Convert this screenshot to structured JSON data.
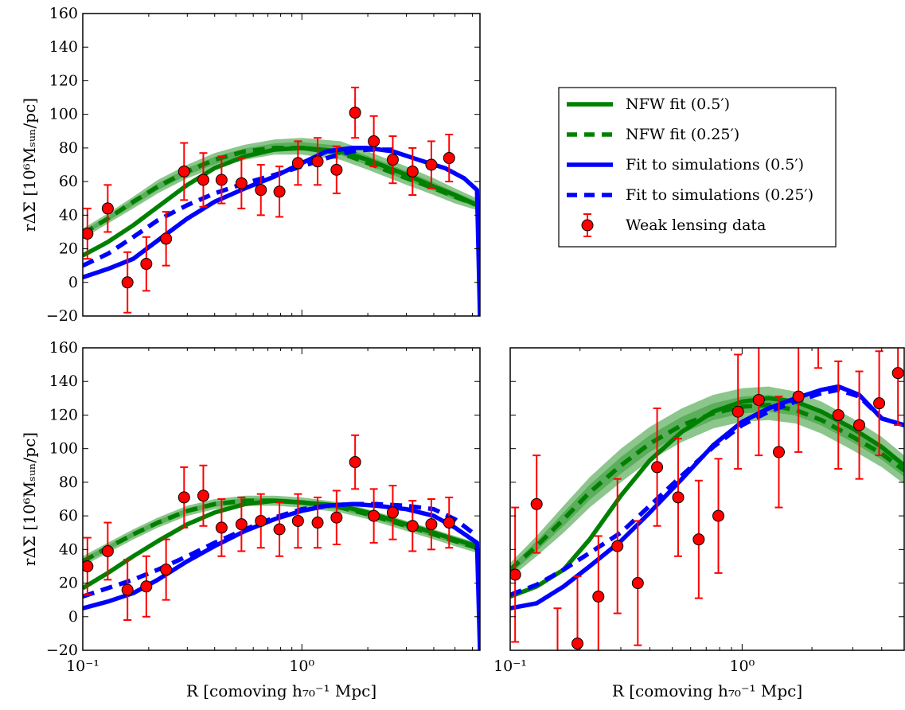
{
  "chart_data": [
    {
      "type": "line",
      "panel": "top-left",
      "xscale": "log",
      "xlim": [
        0.1,
        6.5
      ],
      "ylim": [
        -20,
        160
      ],
      "yticks": [
        "−20",
        "0",
        "20",
        "40",
        "60",
        "80",
        "100",
        "120",
        "140",
        "160"
      ],
      "xticks": [],
      "ylabel": "rΔΣ [10⁶Mₛᵤₙ/pc]",
      "xlabel": "",
      "legend_placement": "right",
      "series": [
        {
          "name": "NFW fit (0.5′)",
          "style": "solid",
          "color": "#008000",
          "x": [
            0.1,
            0.13,
            0.17,
            0.22,
            0.3,
            0.4,
            0.55,
            0.75,
            1.0,
            1.5,
            2.0,
            3.0,
            4.0,
            5.0,
            6.3
          ],
          "y": [
            16,
            24,
            34,
            45,
            58,
            68,
            75,
            79,
            80,
            78,
            73,
            64,
            57,
            52,
            46
          ]
        },
        {
          "name": "NFW fit (0.25′)",
          "style": "dashed",
          "color": "#008000",
          "x": [
            0.1,
            0.13,
            0.17,
            0.22,
            0.3,
            0.4,
            0.55,
            0.75,
            1.0,
            1.5,
            2.0,
            3.0,
            4.0,
            5.0,
            6.3
          ],
          "y": [
            29,
            38,
            48,
            57,
            66,
            73,
            78,
            80,
            80,
            77,
            71,
            62,
            56,
            51,
            46
          ]
        },
        {
          "name": "Fit to simulations (0.5′)",
          "style": "solid",
          "color": "#0000ff",
          "x": [
            0.1,
            0.13,
            0.17,
            0.22,
            0.3,
            0.4,
            0.55,
            0.75,
            1.0,
            1.3,
            1.7,
            2.0,
            2.6,
            3.4,
            4.5,
            5.5,
            6.3,
            6.5
          ],
          "y": [
            3,
            8,
            14,
            25,
            38,
            48,
            56,
            63,
            71,
            78,
            80,
            80,
            78,
            73,
            68,
            62,
            55,
            -20
          ]
        },
        {
          "name": "Fit to simulations (0.25′)",
          "style": "dashed",
          "color": "#0000ff",
          "x": [
            0.1,
            0.13,
            0.17,
            0.22,
            0.3,
            0.4,
            0.55,
            0.75,
            1.0,
            1.3,
            1.7,
            2.0,
            2.6
          ],
          "y": [
            10,
            17,
            27,
            37,
            46,
            53,
            59,
            64,
            69,
            74,
            78,
            79,
            79
          ]
        }
      ],
      "band": {
        "color": "#008000",
        "x": [
          0.1,
          0.13,
          0.17,
          0.22,
          0.3,
          0.4,
          0.55,
          0.75,
          1.0,
          1.5,
          2.0,
          3.0,
          4.0,
          5.0,
          6.3
        ],
        "lower": [
          26,
          35,
          44,
          53,
          62,
          68,
          73,
          76,
          76,
          73,
          67,
          58,
          52,
          47,
          43
        ],
        "upper": [
          32,
          41,
          51,
          61,
          70,
          77,
          82,
          85,
          86,
          84,
          78,
          69,
          62,
          56,
          50
        ]
      },
      "points": {
        "name": "Weak lensing data",
        "color": "#ff0000",
        "x": [
          0.105,
          0.13,
          0.16,
          0.195,
          0.24,
          0.29,
          0.355,
          0.43,
          0.53,
          0.65,
          0.79,
          0.96,
          1.18,
          1.44,
          1.75,
          2.13,
          2.6,
          3.2,
          3.9,
          4.7
        ],
        "y": [
          29,
          44,
          0,
          11,
          26,
          66,
          61,
          61,
          59,
          55,
          54,
          71,
          72,
          67,
          101,
          84,
          73,
          66,
          70,
          74
        ],
        "yerr": [
          15,
          14,
          18,
          16,
          16,
          17,
          16,
          14,
          15,
          15,
          15,
          13,
          14,
          14,
          15,
          15,
          14,
          14,
          14,
          14
        ]
      }
    },
    {
      "type": "line",
      "panel": "bottom-left",
      "xscale": "log",
      "xlim": [
        0.1,
        6.5
      ],
      "ylim": [
        -20,
        160
      ],
      "yticks": [
        "−20",
        "0",
        "20",
        "40",
        "60",
        "80",
        "100",
        "120",
        "140",
        "160"
      ],
      "xticks": [
        "10⁻¹",
        "10⁰"
      ],
      "ylabel": "rΔΣ [10⁶Mₛᵤₙ/pc]",
      "xlabel": "R [comoving h₇₀⁻¹ Mpc]",
      "series": [
        {
          "name": "NFW fit (0.5′)",
          "style": "solid",
          "color": "#008000",
          "x": [
            0.1,
            0.13,
            0.17,
            0.22,
            0.3,
            0.4,
            0.55,
            0.75,
            1.0,
            1.5,
            2.0,
            3.0,
            4.0,
            5.0,
            6.3
          ],
          "y": [
            17,
            26,
            36,
            45,
            55,
            62,
            67,
            69,
            68,
            66,
            62,
            55,
            50,
            46,
            42
          ]
        },
        {
          "name": "NFW fit (0.25′)",
          "style": "dashed",
          "color": "#008000",
          "x": [
            0.1,
            0.13,
            0.17,
            0.22,
            0.3,
            0.4,
            0.55,
            0.75,
            1.0,
            1.5,
            2.0,
            3.0,
            4.0,
            5.0,
            6.3
          ],
          "y": [
            33,
            41,
            49,
            56,
            63,
            67,
            69,
            69,
            68,
            65,
            61,
            54,
            49,
            45,
            41
          ]
        },
        {
          "name": "Fit to simulations (0.5′)",
          "style": "solid",
          "color": "#0000ff",
          "x": [
            0.1,
            0.13,
            0.17,
            0.22,
            0.3,
            0.4,
            0.55,
            0.75,
            1.0,
            1.3,
            1.7,
            2.2,
            3.0,
            4.0,
            5.0,
            6.3,
            6.5
          ],
          "y": [
            5,
            9,
            14,
            22,
            33,
            42,
            51,
            58,
            63,
            66,
            67,
            66,
            64,
            60,
            53,
            44,
            -20
          ]
        },
        {
          "name": "Fit to simulations (0.25′)",
          "style": "dashed",
          "color": "#0000ff",
          "x": [
            0.1,
            0.13,
            0.17,
            0.22,
            0.3,
            0.4,
            0.55,
            0.75,
            1.0,
            1.3,
            1.7,
            2.2,
            3.0,
            4.0,
            5.0,
            6.3
          ],
          "y": [
            12,
            17,
            22,
            28,
            36,
            44,
            52,
            59,
            64,
            66,
            67,
            67,
            66,
            64,
            58,
            48
          ]
        }
      ],
      "band": {
        "color": "#008000",
        "x": [
          0.1,
          0.13,
          0.17,
          0.22,
          0.3,
          0.4,
          0.55,
          0.75,
          1.0,
          1.5,
          2.0,
          3.0,
          4.0,
          5.0,
          6.3
        ],
        "lower": [
          30,
          38,
          46,
          53,
          60,
          64,
          66,
          66,
          65,
          62,
          58,
          51,
          46,
          42,
          38
        ],
        "upper": [
          36,
          44,
          52,
          59,
          66,
          70,
          72,
          72,
          71,
          68,
          64,
          57,
          52,
          48,
          44
        ]
      },
      "points": {
        "name": "Weak lensing data",
        "color": "#ff0000",
        "x": [
          0.105,
          0.13,
          0.16,
          0.195,
          0.24,
          0.29,
          0.355,
          0.43,
          0.53,
          0.65,
          0.79,
          0.96,
          1.18,
          1.44,
          1.75,
          2.13,
          2.6,
          3.2,
          3.9,
          4.7
        ],
        "y": [
          30,
          39,
          16,
          18,
          28,
          71,
          72,
          53,
          55,
          57,
          52,
          57,
          56,
          59,
          92,
          60,
          62,
          54,
          55,
          56
        ],
        "yerr": [
          17,
          17,
          18,
          18,
          18,
          18,
          18,
          17,
          16,
          16,
          16,
          16,
          15,
          16,
          16,
          16,
          16,
          15,
          15,
          15
        ]
      }
    },
    {
      "type": "line",
      "panel": "bottom-right",
      "xscale": "log",
      "xlim": [
        0.1,
        5.0
      ],
      "ylim": [
        -20,
        160
      ],
      "yticks": [],
      "xticks": [
        "10⁻¹",
        "10⁰"
      ],
      "ylabel": "",
      "xlabel": "R [comoving h₇₀⁻¹ Mpc]",
      "series": [
        {
          "name": "NFW fit (0.5′)",
          "style": "solid",
          "color": "#008000",
          "x": [
            0.1,
            0.13,
            0.17,
            0.22,
            0.3,
            0.4,
            0.55,
            0.75,
            1.0,
            1.3,
            1.7,
            2.2,
            3.0,
            4.0,
            5.0
          ],
          "y": [
            12,
            18,
            28,
            46,
            72,
            93,
            110,
            122,
            128,
            130,
            128,
            122,
            112,
            101,
            90
          ]
        },
        {
          "name": "NFW fit (0.25′)",
          "style": "dashed",
          "color": "#008000",
          "x": [
            0.1,
            0.13,
            0.17,
            0.22,
            0.3,
            0.4,
            0.55,
            0.75,
            1.0,
            1.3,
            1.7,
            2.2,
            3.0,
            4.0,
            5.0
          ],
          "y": [
            28,
            42,
            58,
            74,
            90,
            103,
            114,
            121,
            125,
            126,
            123,
            117,
            107,
            97,
            87
          ]
        },
        {
          "name": "Fit to simulations (0.5′)",
          "style": "solid",
          "color": "#0000ff",
          "x": [
            0.1,
            0.13,
            0.17,
            0.22,
            0.3,
            0.4,
            0.55,
            0.75,
            1.0,
            1.3,
            1.7,
            2.2,
            2.6,
            3.2,
            4.0,
            5.0
          ],
          "y": [
            5,
            8,
            18,
            30,
            45,
            62,
            82,
            102,
            116,
            124,
            130,
            135,
            137,
            132,
            118,
            114
          ]
        },
        {
          "name": "Fit to simulations (0.25′)",
          "style": "dashed",
          "color": "#0000ff",
          "x": [
            0.1,
            0.13,
            0.17,
            0.22,
            0.3,
            0.4,
            0.55,
            0.75,
            1.0,
            1.3,
            1.7,
            2.2,
            2.6,
            3.2,
            4.0,
            5.0
          ],
          "y": [
            13,
            19,
            28,
            38,
            50,
            66,
            84,
            101,
            114,
            122,
            128,
            133,
            135,
            131,
            118,
            114
          ]
        }
      ],
      "band": {
        "color": "#008000",
        "x": [
          0.1,
          0.13,
          0.17,
          0.22,
          0.3,
          0.4,
          0.55,
          0.75,
          1.0,
          1.3,
          1.7,
          2.2,
          3.0,
          4.0,
          5.0
        ],
        "lower": [
          23,
          36,
          50,
          65,
          80,
          93,
          104,
          112,
          116,
          117,
          115,
          109,
          99,
          89,
          79
        ],
        "upper": [
          32,
          48,
          66,
          83,
          100,
          113,
          124,
          132,
          136,
          137,
          134,
          128,
          118,
          107,
          96
        ]
      },
      "points": {
        "name": "Weak lensing data",
        "color": "#ff0000",
        "x": [
          0.105,
          0.13,
          0.16,
          0.195,
          0.24,
          0.29,
          0.355,
          0.43,
          0.53,
          0.65,
          0.79,
          0.96,
          1.18,
          1.44,
          1.75,
          2.13,
          2.6,
          3.2,
          3.9,
          4.7
        ],
        "y": [
          25,
          67,
          -35,
          -16,
          12,
          42,
          20,
          89,
          71,
          46,
          60,
          122,
          129,
          98,
          131,
          164,
          120,
          114,
          127,
          145
        ],
        "yerr": [
          40,
          29,
          40,
          40,
          36,
          40,
          37,
          35,
          35,
          35,
          34,
          34,
          33,
          33,
          33,
          16,
          32,
          32,
          31,
          31
        ]
      }
    }
  ],
  "legend": {
    "items": [
      {
        "label": "NFW fit (0.5′)",
        "color": "#008000",
        "style": "solid"
      },
      {
        "label": "NFW fit (0.25′)",
        "color": "#008000",
        "style": "dashed"
      },
      {
        "label": "Fit to simulations (0.5′)",
        "color": "#0000ff",
        "style": "solid"
      },
      {
        "label": "Fit to simulations (0.25′)",
        "color": "#0000ff",
        "style": "dashed"
      },
      {
        "label": "Weak lensing data",
        "color": "#ff0000",
        "style": "marker"
      }
    ]
  }
}
